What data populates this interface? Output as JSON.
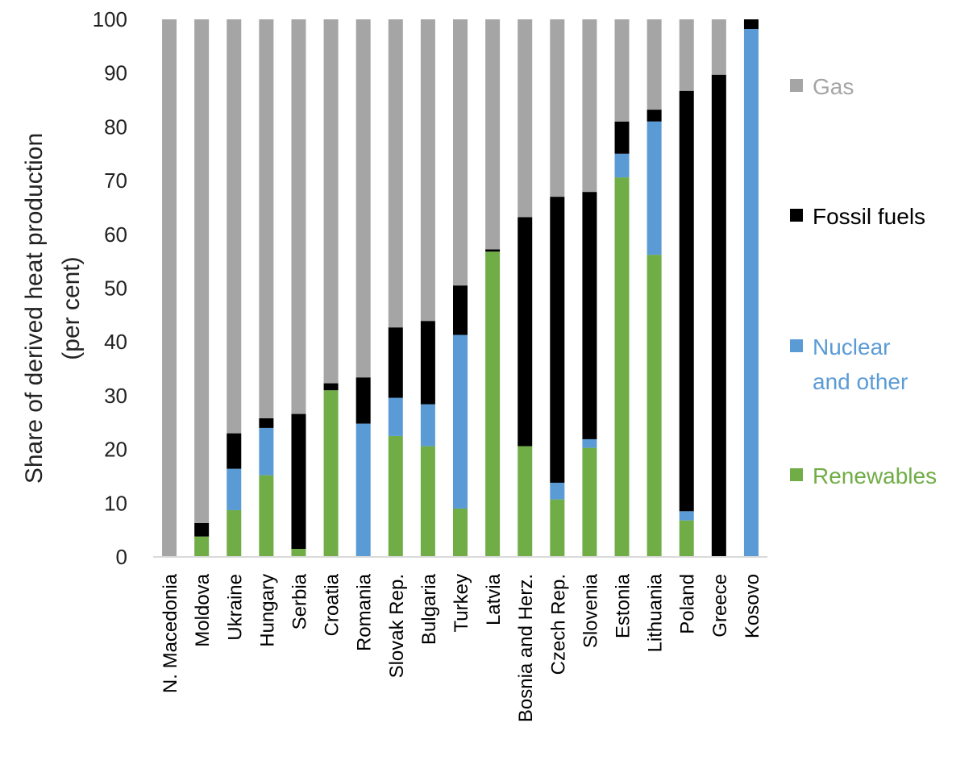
{
  "chart_data": {
    "type": "bar",
    "stacked": true,
    "ylabel": "Share of derived heat production (per cent)",
    "ylim": [
      0,
      100
    ],
    "yticks": [
      0,
      10,
      20,
      30,
      40,
      50,
      60,
      70,
      80,
      90,
      100
    ],
    "grid": false,
    "legend_position": "right",
    "categories": [
      "N. Macedonia",
      "Moldova",
      "Ukraine",
      "Hungary",
      "Serbia",
      "Croatia",
      "Romania",
      "Slovak Rep.",
      "Bulgaria",
      "Turkey",
      "Latvia",
      "Bosnia and Herz.",
      "Czech Rep.",
      "Slovenia",
      "Estonia",
      "Lithuania",
      "Poland",
      "Greece",
      "Kosovo"
    ],
    "series": [
      {
        "name": "Renewables",
        "color": "#70ad47",
        "values": [
          0,
          3.8,
          8.7,
          15.2,
          1.5,
          31,
          0,
          22.5,
          20.6,
          9,
          56.8,
          20.6,
          10.7,
          20.3,
          70.6,
          56.2,
          6.8,
          0,
          0
        ]
      },
      {
        "name": "Nuclear and other",
        "color": "#5b9bd5",
        "values": [
          0,
          0,
          7.7,
          8.8,
          0,
          0,
          24.8,
          7.1,
          7.8,
          32.3,
          0,
          0,
          3.1,
          1.6,
          4.4,
          24.8,
          1.7,
          0,
          98.2
        ]
      },
      {
        "name": "Fossil fuels",
        "color": "#000000",
        "values": [
          0,
          2.5,
          6.6,
          1.8,
          25.1,
          1.3,
          8.6,
          13.1,
          15.5,
          9.2,
          0.4,
          42.6,
          53.2,
          46,
          6,
          2.2,
          78.2,
          89.7,
          1.8
        ]
      },
      {
        "name": "Gas",
        "color": "#a5a5a5",
        "values": [
          100,
          93.7,
          77,
          74.2,
          73.4,
          67.7,
          66.6,
          57.3,
          56.1,
          49.5,
          42.8,
          36.8,
          33,
          32.1,
          19,
          16.8,
          13.3,
          10.3,
          0
        ]
      }
    ],
    "legend_order": [
      "Gas",
      "Fossil fuels",
      "Nuclear and other",
      "Renewables"
    ],
    "legend_labels": {
      "Gas": [
        "Gas"
      ],
      "Fossil fuels": [
        "Fossil fuels"
      ],
      "Nuclear and other": [
        "Nuclear",
        "and other"
      ],
      "Renewables": [
        "Renewables"
      ]
    }
  }
}
